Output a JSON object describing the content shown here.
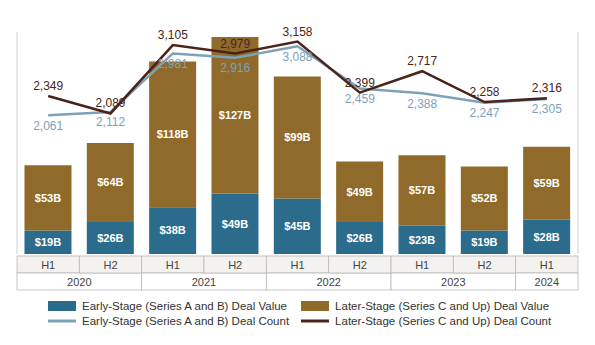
{
  "chart_data": {
    "type": "bar",
    "stacked": true,
    "data_labels": true,
    "tick_labels": "x",
    "legend": "bottom",
    "categories": [
      "H1",
      "H2",
      "H1",
      "H2",
      "H1",
      "H2",
      "H1",
      "H2",
      "H1"
    ],
    "category_groups": [
      {
        "label": "2020",
        "span": 2
      },
      {
        "label": "2021",
        "span": 2
      },
      {
        "label": "2022",
        "span": 2
      },
      {
        "label": "2023",
        "span": 2
      },
      {
        "label": "2024",
        "span": 1
      }
    ],
    "ylim": [
      0,
      180
    ],
    "y2lim": [
      0,
      3300
    ],
    "series": [
      {
        "name": "Early-Stage (Series A and B) Deal Value",
        "type": "bar",
        "color": "#2b6b8c",
        "values": [
          19,
          26,
          38,
          49,
          45,
          26,
          23,
          19,
          28
        ],
        "value_labels": [
          "$19B",
          "$26B",
          "$38B",
          "$49B",
          "$45B",
          "$26B",
          "$23B",
          "$19B",
          "$28B"
        ]
      },
      {
        "name": "Later-Stage (Series C and Up) Deal Value",
        "type": "bar",
        "color": "#8f6a2b",
        "values": [
          53,
          64,
          118,
          127,
          99,
          49,
          57,
          52,
          59
        ],
        "value_labels": [
          "$53B",
          "$64B",
          "$118B",
          "$127B",
          "$99B",
          "$49B",
          "$57B",
          "$52B",
          "$59B"
        ]
      },
      {
        "name": "Early-Stage (Series A and B) Deal Count",
        "type": "line",
        "axis": "y2",
        "color": "#7da2b8",
        "values": [
          2061,
          2112,
          2981,
          2916,
          3088,
          2459,
          2388,
          2247,
          2305
        ],
        "value_labels": [
          "2,061",
          "2,112",
          "2,981",
          "2,916",
          "3,088",
          "2,459",
          "2,388",
          "2,247",
          "2,305"
        ]
      },
      {
        "name": "Later-Stage (Series C and Up) Deal Count",
        "type": "line",
        "axis": "y2",
        "color": "#4b2419",
        "values": [
          2349,
          2089,
          3105,
          2979,
          3158,
          2399,
          2717,
          2258,
          2316
        ],
        "value_labels": [
          "2,349",
          "2,089",
          "3,105",
          "2,979",
          "3,158",
          "2,399",
          "2,717",
          "2,258",
          "2,316"
        ]
      }
    ]
  }
}
